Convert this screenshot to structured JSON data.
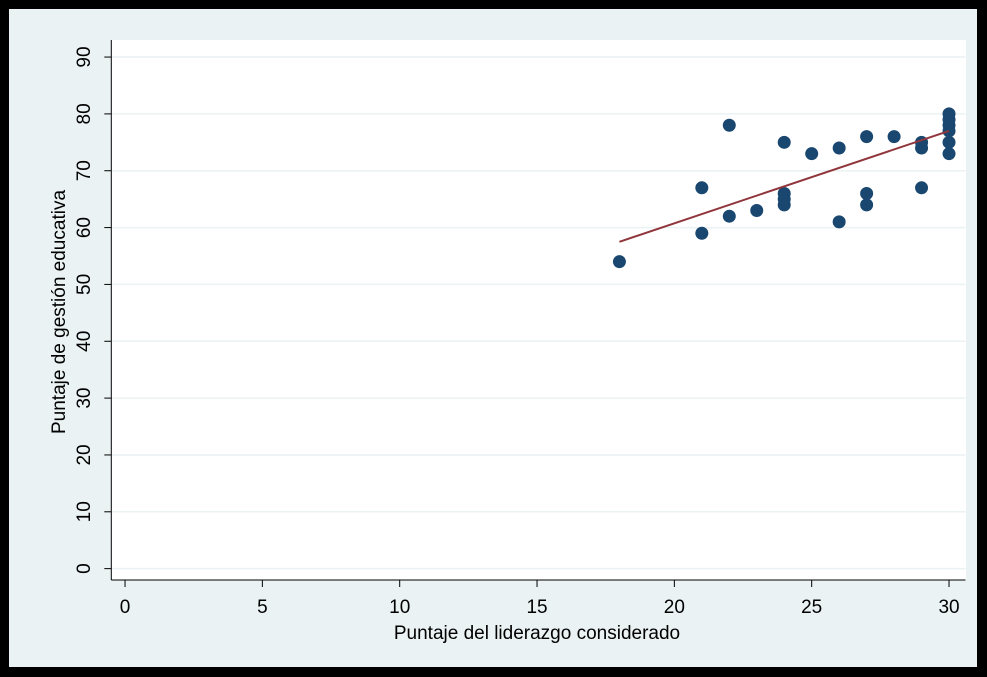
{
  "chart_data": {
    "type": "scatter",
    "xlabel": "Puntaje del liderazgo considerado",
    "ylabel": "Puntaje de gestión educativa",
    "x": [
      18,
      21,
      21,
      22,
      22,
      23,
      24,
      24,
      24,
      24,
      25,
      26,
      26,
      27,
      27,
      27,
      28,
      29,
      29,
      29,
      30,
      30,
      30,
      30,
      30,
      30
    ],
    "values": [
      54,
      67,
      59,
      78,
      62,
      63,
      75,
      66,
      65,
      64,
      73,
      74,
      61,
      76,
      66,
      64,
      76,
      75,
      74,
      67,
      80,
      79,
      78,
      77,
      75,
      73
    ],
    "color": "#1a476f",
    "fit_line": {
      "x": [
        18,
        30
      ],
      "values": [
        57.5,
        77
      ],
      "color": "#90353b"
    },
    "xlim": [
      -0.5,
      30.6
    ],
    "ylim": [
      -2,
      93
    ],
    "xticks": [
      0,
      5,
      10,
      15,
      20,
      25,
      30
    ],
    "yticks": [
      0,
      10,
      20,
      30,
      40,
      50,
      60,
      70,
      80,
      90
    ],
    "grid": true
  }
}
